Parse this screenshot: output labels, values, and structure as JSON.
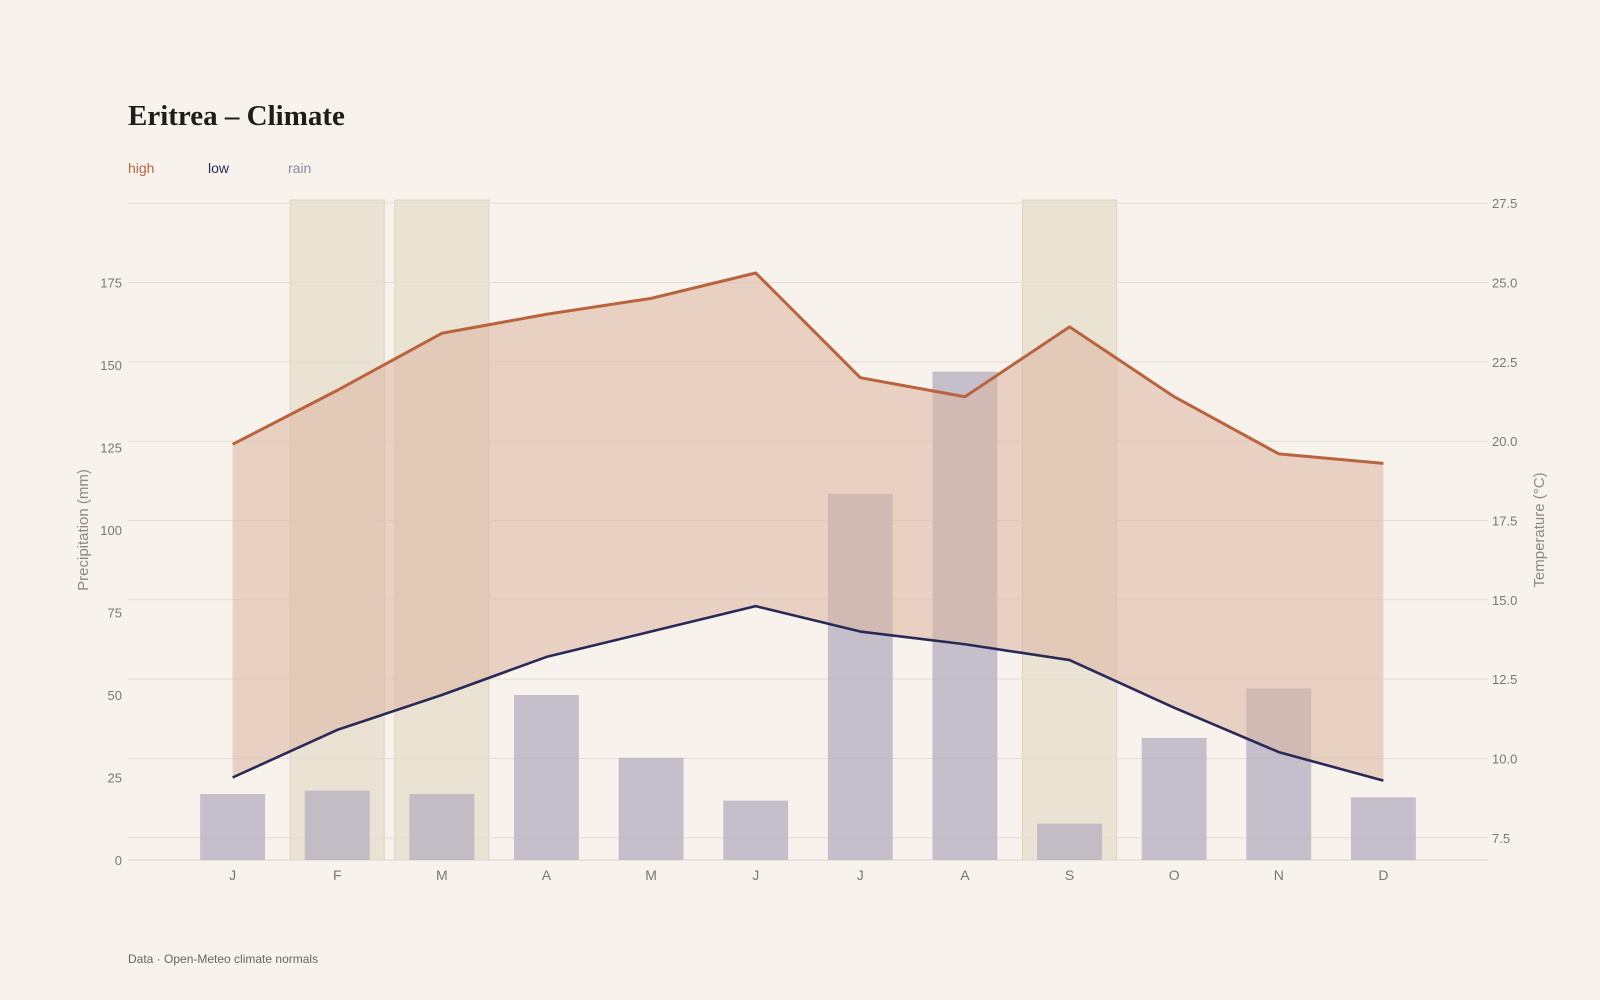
{
  "title": "Eritrea – Climate",
  "legend": [
    {
      "label": "high",
      "color": "#b9643f"
    },
    {
      "label": "low",
      "color": "#2a2857"
    },
    {
      "label": "rain",
      "color": "#8c88a3"
    }
  ],
  "footer": "Data · Open-Meteo climate normals",
  "chart_data": {
    "type": "bar+line",
    "categories": [
      "J",
      "F",
      "M",
      "A",
      "M",
      "J",
      "J",
      "A",
      "S",
      "O",
      "N",
      "D"
    ],
    "precipitation": {
      "name": "rain",
      "values": [
        20,
        21,
        20,
        50,
        31,
        18,
        111,
        148,
        11,
        37,
        52,
        19
      ]
    },
    "high": {
      "name": "high",
      "values": [
        19.9,
        21.6,
        23.4,
        24.0,
        24.5,
        25.3,
        22.0,
        21.4,
        23.6,
        21.4,
        19.6,
        19.3
      ]
    },
    "low": {
      "name": "low",
      "values": [
        9.4,
        10.9,
        12.0,
        13.2,
        14.0,
        14.8,
        14.0,
        13.6,
        13.1,
        11.6,
        10.2,
        9.3
      ]
    },
    "highlight_months": [
      1,
      2,
      8
    ],
    "y_left": {
      "label": "Precipitation (mm)",
      "lim": [
        0,
        200
      ],
      "ticks": [
        0,
        25,
        50,
        75,
        100,
        125,
        150,
        175
      ]
    },
    "y_right": {
      "label": "Temperature (°C)",
      "lim": [
        6.8,
        27.6
      ],
      "ticks": [
        7.5,
        10.0,
        12.5,
        15.0,
        17.5,
        20.0,
        22.5,
        25.0,
        27.5
      ]
    },
    "grid": true,
    "colors": {
      "high": "#b9643f",
      "low": "#2a2857",
      "band": "#ddb6a2",
      "rain": "#b6b1c1",
      "highlight": "#e6dcc9",
      "grid": "#e5ddd3"
    }
  }
}
